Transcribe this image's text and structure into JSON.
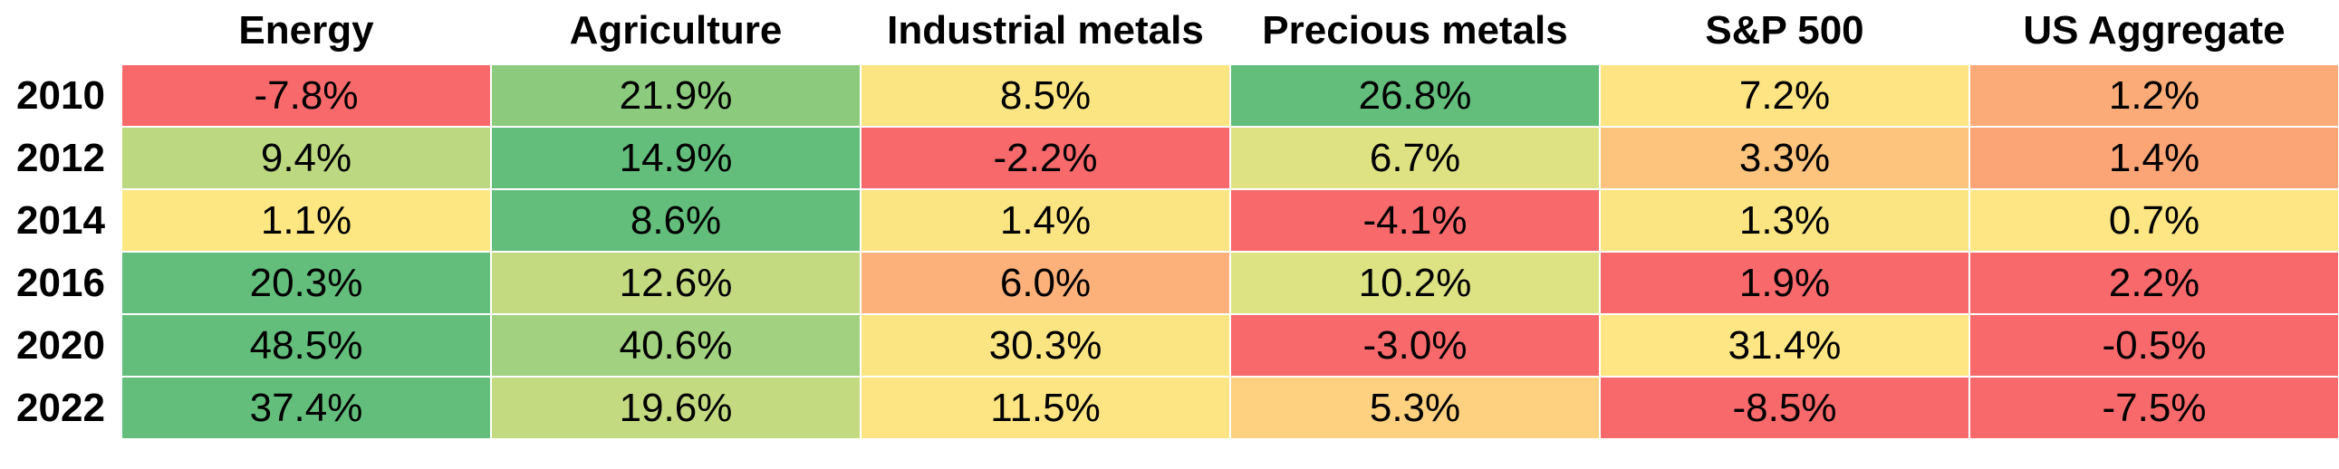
{
  "chart_data": {
    "type": "heatmap",
    "columns": [
      "Energy",
      "Agriculture",
      "Industrial metals",
      "Precious metals",
      "S&P 500",
      "US Aggregate"
    ],
    "rows": [
      "2010",
      "2012",
      "2014",
      "2016",
      "2020",
      "2022"
    ],
    "cells": [
      [
        {
          "label": "-7.8%",
          "value": -7.8,
          "color": "#f8696b"
        },
        {
          "label": "21.9%",
          "value": 21.9,
          "color": "#8ccb7e"
        },
        {
          "label": "8.5%",
          "value": 8.5,
          "color": "#fbe583"
        },
        {
          "label": "26.8%",
          "value": 26.8,
          "color": "#63be7b"
        },
        {
          "label": "7.2%",
          "value": 7.2,
          "color": "#fee483"
        },
        {
          "label": "1.2%",
          "value": 1.2,
          "color": "#fbab77"
        }
      ],
      [
        {
          "label": "9.4%",
          "value": 9.4,
          "color": "#bcd880"
        },
        {
          "label": "14.9%",
          "value": 14.9,
          "color": "#63be7b"
        },
        {
          "label": "-2.2%",
          "value": -2.2,
          "color": "#f8696b"
        },
        {
          "label": "6.7%",
          "value": 6.7,
          "color": "#dfe283"
        },
        {
          "label": "3.3%",
          "value": 3.3,
          "color": "#fdc47d"
        },
        {
          "label": "1.4%",
          "value": 1.4,
          "color": "#fba476"
        }
      ],
      [
        {
          "label": "1.1%",
          "value": 1.1,
          "color": "#fde783"
        },
        {
          "label": "8.6%",
          "value": 8.6,
          "color": "#63be7b"
        },
        {
          "label": "1.4%",
          "value": 1.4,
          "color": "#fbe583"
        },
        {
          "label": "-4.1%",
          "value": -4.1,
          "color": "#f8696b"
        },
        {
          "label": "1.3%",
          "value": 1.3,
          "color": "#fbe583"
        },
        {
          "label": "0.7%",
          "value": 0.7,
          "color": "#fde683"
        }
      ],
      [
        {
          "label": "20.3%",
          "value": 20.3,
          "color": "#63be7b"
        },
        {
          "label": "12.6%",
          "value": 12.6,
          "color": "#c4da81"
        },
        {
          "label": "6.0%",
          "value": 6.0,
          "color": "#fbb179"
        },
        {
          "label": "10.2%",
          "value": 10.2,
          "color": "#dde283"
        },
        {
          "label": "1.9%",
          "value": 1.9,
          "color": "#f8696b"
        },
        {
          "label": "2.2%",
          "value": 2.2,
          "color": "#f8696b"
        }
      ],
      [
        {
          "label": "48.5%",
          "value": 48.5,
          "color": "#63be7b"
        },
        {
          "label": "40.6%",
          "value": 40.6,
          "color": "#a2d17f"
        },
        {
          "label": "30.3%",
          "value": 30.3,
          "color": "#fbe583"
        },
        {
          "label": "-3.0%",
          "value": -3.0,
          "color": "#f8696b"
        },
        {
          "label": "31.4%",
          "value": 31.4,
          "color": "#fde683"
        },
        {
          "label": "-0.5%",
          "value": -0.5,
          "color": "#f8696b"
        }
      ],
      [
        {
          "label": "37.4%",
          "value": 37.4,
          "color": "#63be7b"
        },
        {
          "label": "19.6%",
          "value": 19.6,
          "color": "#c3da81"
        },
        {
          "label": "11.5%",
          "value": 11.5,
          "color": "#fde583"
        },
        {
          "label": "5.3%",
          "value": 5.3,
          "color": "#fdd180"
        },
        {
          "label": "-8.5%",
          "value": -8.5,
          "color": "#f8696b"
        },
        {
          "label": "-7.5%",
          "value": -7.5,
          "color": "#f8696b"
        }
      ]
    ]
  }
}
